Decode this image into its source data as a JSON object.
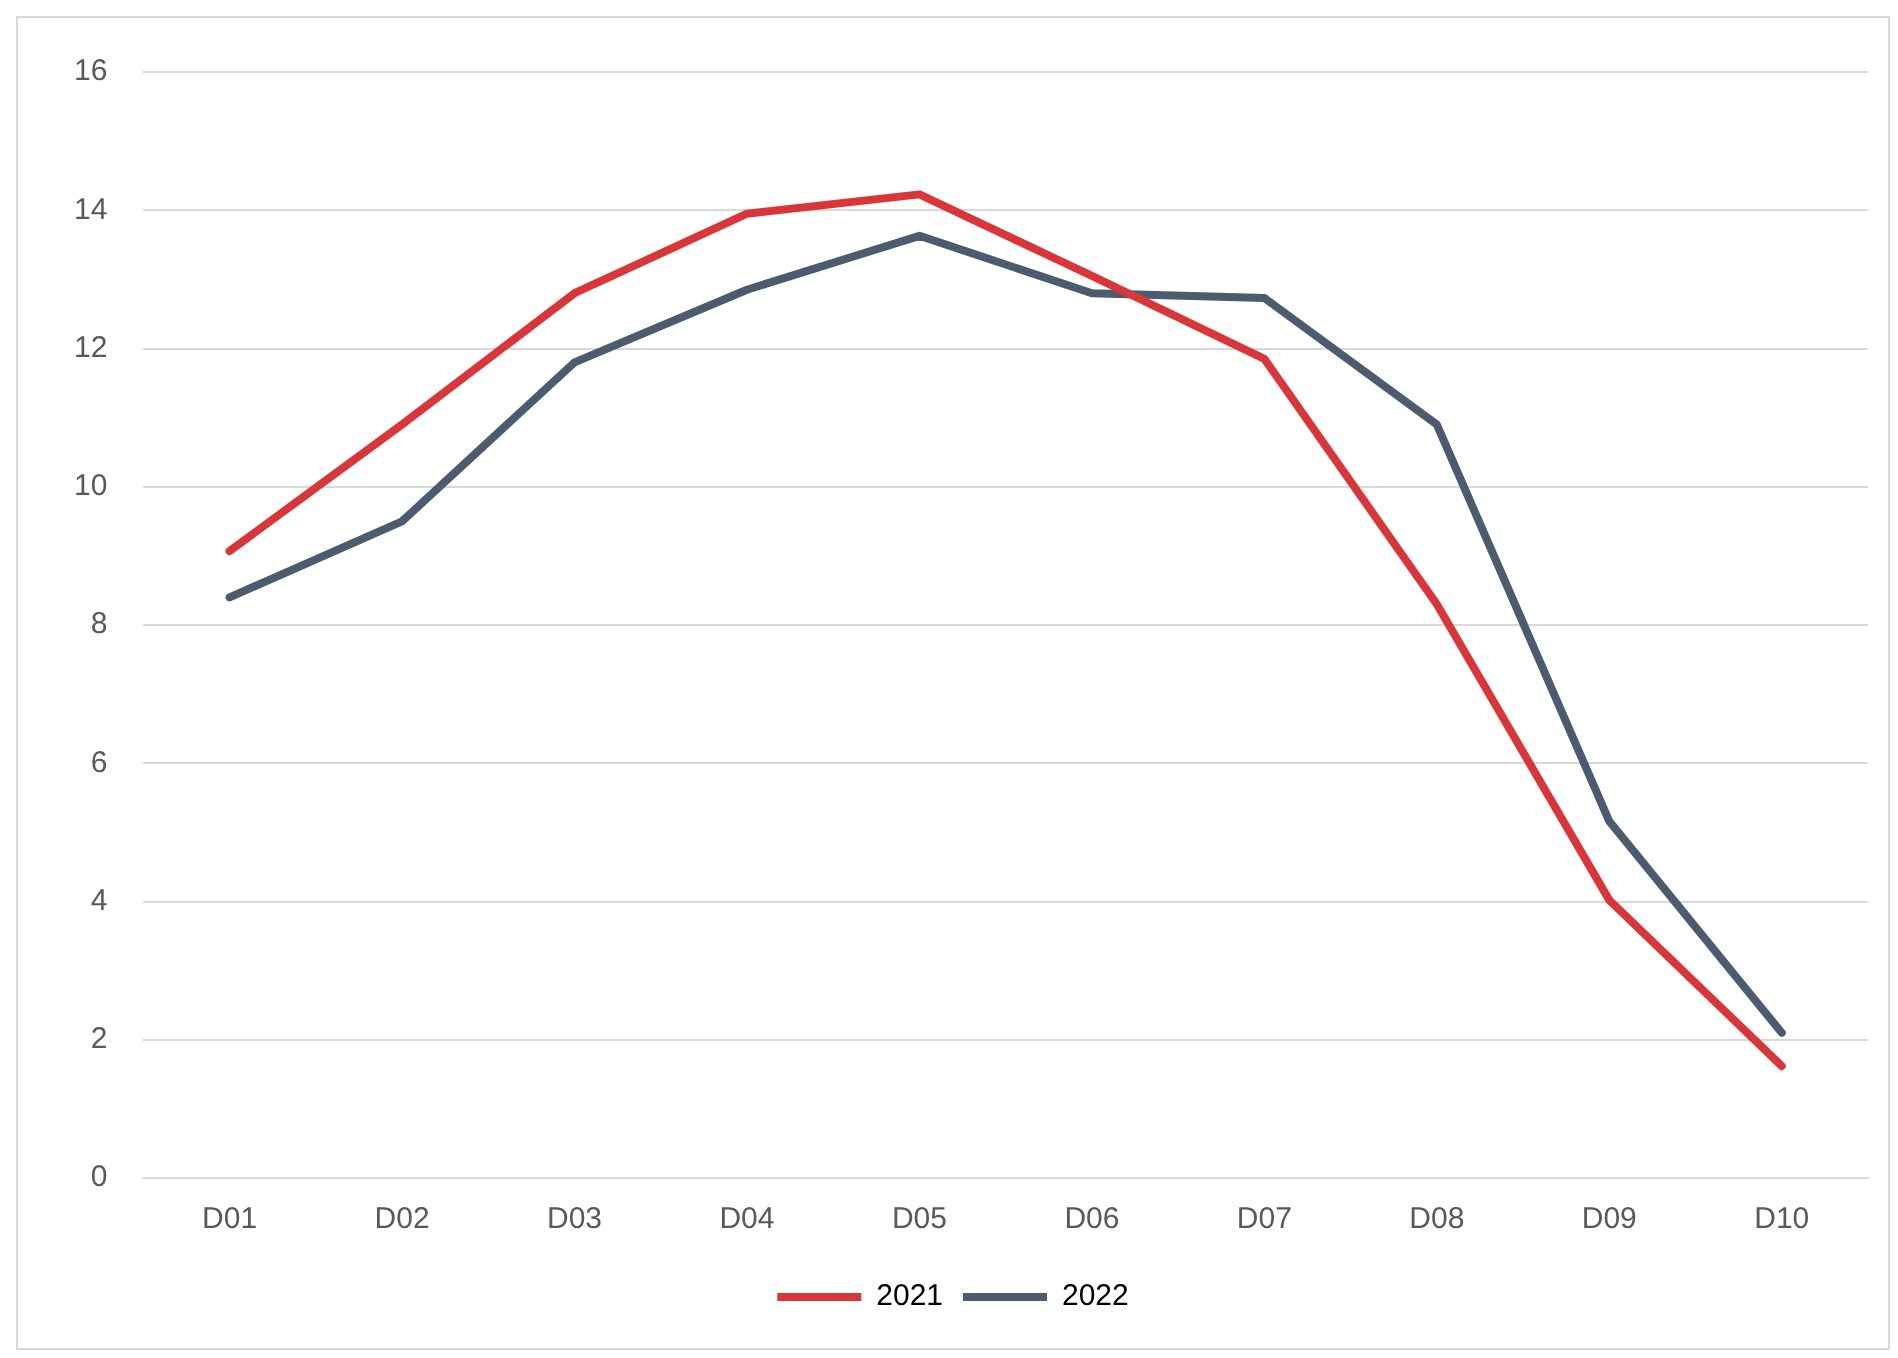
{
  "chart_data": {
    "type": "line",
    "categories": [
      "D01",
      "D02",
      "D03",
      "D04",
      "D05",
      "D06",
      "D07",
      "D08",
      "D09",
      "D10"
    ],
    "series": [
      {
        "name": "2021",
        "color": "#d9363a",
        "values": [
          9.07,
          10.9,
          12.8,
          13.95,
          14.23,
          13.05,
          11.85,
          8.3,
          4.02,
          1.62
        ]
      },
      {
        "name": "2022",
        "color": "#4b5c6e",
        "values": [
          8.4,
          9.5,
          11.8,
          12.85,
          13.63,
          12.8,
          12.73,
          10.9,
          5.16,
          2.1
        ]
      }
    ],
    "ylim": [
      0,
      16
    ],
    "yticks": [
      0,
      2,
      4,
      6,
      8,
      10,
      12,
      14,
      16
    ],
    "grid": "y",
    "legend": "bottom",
    "marker": "none",
    "line_style": "solid"
  }
}
